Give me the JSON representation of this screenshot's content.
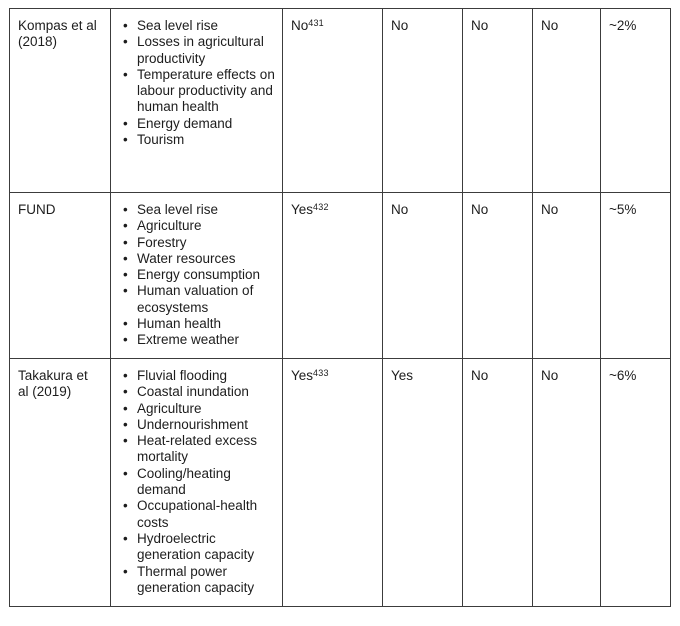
{
  "page": {
    "background_color": "#ffffff",
    "text_color": "#1d1d1d",
    "border_color": "#3c3c3c"
  },
  "table": {
    "bullet": "•",
    "rows": [
      {
        "study": "Kompas et al (2018)",
        "impacts": [
          "Sea level rise",
          "Losses in agricultural productivity",
          "Temperature effects on labour productivity and human health",
          "Energy demand",
          "Tourism"
        ],
        "cells": [
          {
            "text": "No",
            "sup": "431"
          },
          {
            "text": "No"
          },
          {
            "text": "No"
          },
          {
            "text": "No"
          },
          {
            "text": "~2%"
          }
        ]
      },
      {
        "study": "FUND",
        "impacts": [
          "Sea level rise",
          "Agriculture",
          "Forestry",
          "Water resources",
          "Energy consumption",
          "Human valuation of ecosystems",
          "Human health",
          "Extreme weather"
        ],
        "cells": [
          {
            "text": "Yes",
            "sup": "432"
          },
          {
            "text": "No"
          },
          {
            "text": "No"
          },
          {
            "text": "No"
          },
          {
            "text": "~5%"
          }
        ]
      },
      {
        "study": "Takakura et al (2019)",
        "impacts": [
          "Fluvial flooding",
          "Coastal inundation",
          "Agriculture",
          "Undernourishment",
          "Heat-related excess mortality",
          "Cooling/heating demand",
          "Occupational-health costs",
          "Hydroelectric generation capacity",
          "Thermal power generation capacity"
        ],
        "cells": [
          {
            "text": "Yes",
            "sup": "433"
          },
          {
            "text": "Yes"
          },
          {
            "text": "No"
          },
          {
            "text": "No"
          },
          {
            "text": "~6%"
          }
        ]
      }
    ]
  }
}
